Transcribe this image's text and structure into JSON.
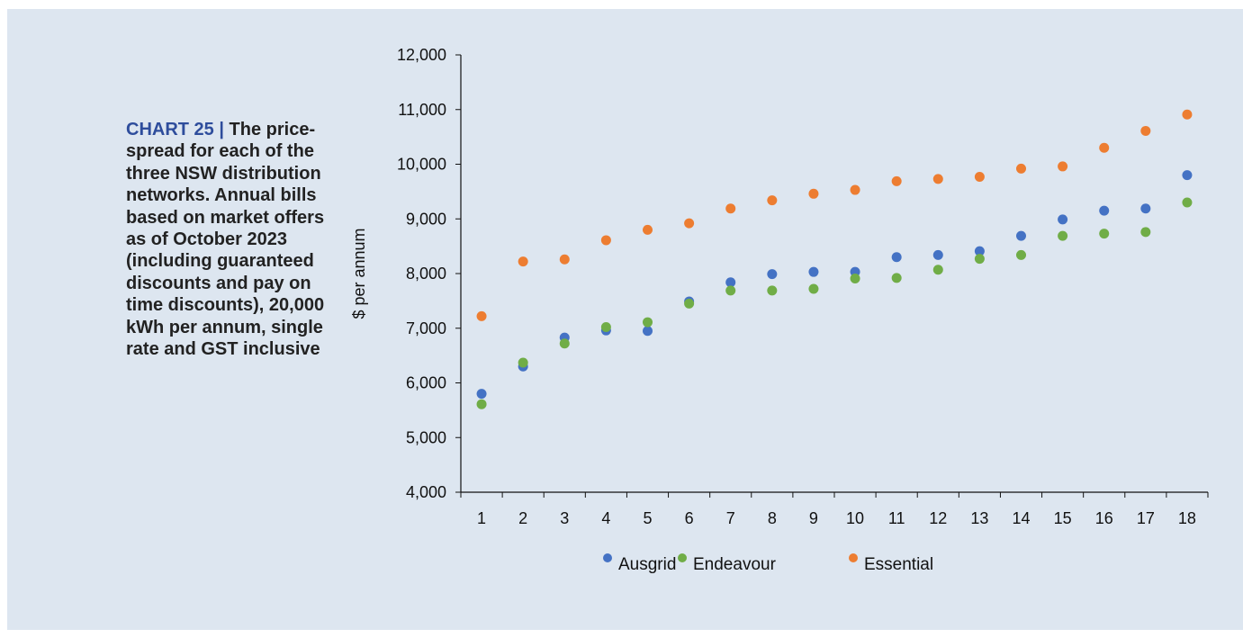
{
  "caption": {
    "label": "CHART 25",
    "separator": "|",
    "text": "The price-spread for each of the three NSW distribution networks. Annual bills based on market offers as of October 2023 (including guaranteed discounts and pay on time discounts), 20,000 kWh per annum, single rate and GST inclusive"
  },
  "chart_data": {
    "type": "scatter",
    "ylabel": "$ per annum",
    "xlabel": "",
    "ylim": [
      4000,
      12000
    ],
    "ytick_step": 1000,
    "categories": [
      "1",
      "2",
      "3",
      "4",
      "5",
      "6",
      "7",
      "8",
      "9",
      "10",
      "11",
      "12",
      "13",
      "14",
      "15",
      "16",
      "17",
      "18"
    ],
    "legend_position": "bottom",
    "grid": false,
    "series": [
      {
        "name": "Ausgrid",
        "color": "#4472c4",
        "values": [
          5800,
          6300,
          6830,
          6960,
          6950,
          7490,
          7840,
          7990,
          8030,
          8030,
          8300,
          8340,
          8410,
          8690,
          8990,
          9150,
          9190,
          9800
        ]
      },
      {
        "name": "Endeavour",
        "color": "#70ad47",
        "values": [
          5610,
          6370,
          6720,
          7020,
          7110,
          7450,
          7690,
          7690,
          7720,
          7910,
          7920,
          8070,
          8270,
          8340,
          8690,
          8730,
          8760,
          9300
        ]
      },
      {
        "name": "Essential",
        "color": "#ed7d31",
        "values": [
          7220,
          8220,
          8260,
          8610,
          8800,
          8920,
          9190,
          9340,
          9460,
          9530,
          9690,
          9730,
          9770,
          9920,
          9960,
          10300,
          10610,
          10910
        ]
      }
    ]
  }
}
